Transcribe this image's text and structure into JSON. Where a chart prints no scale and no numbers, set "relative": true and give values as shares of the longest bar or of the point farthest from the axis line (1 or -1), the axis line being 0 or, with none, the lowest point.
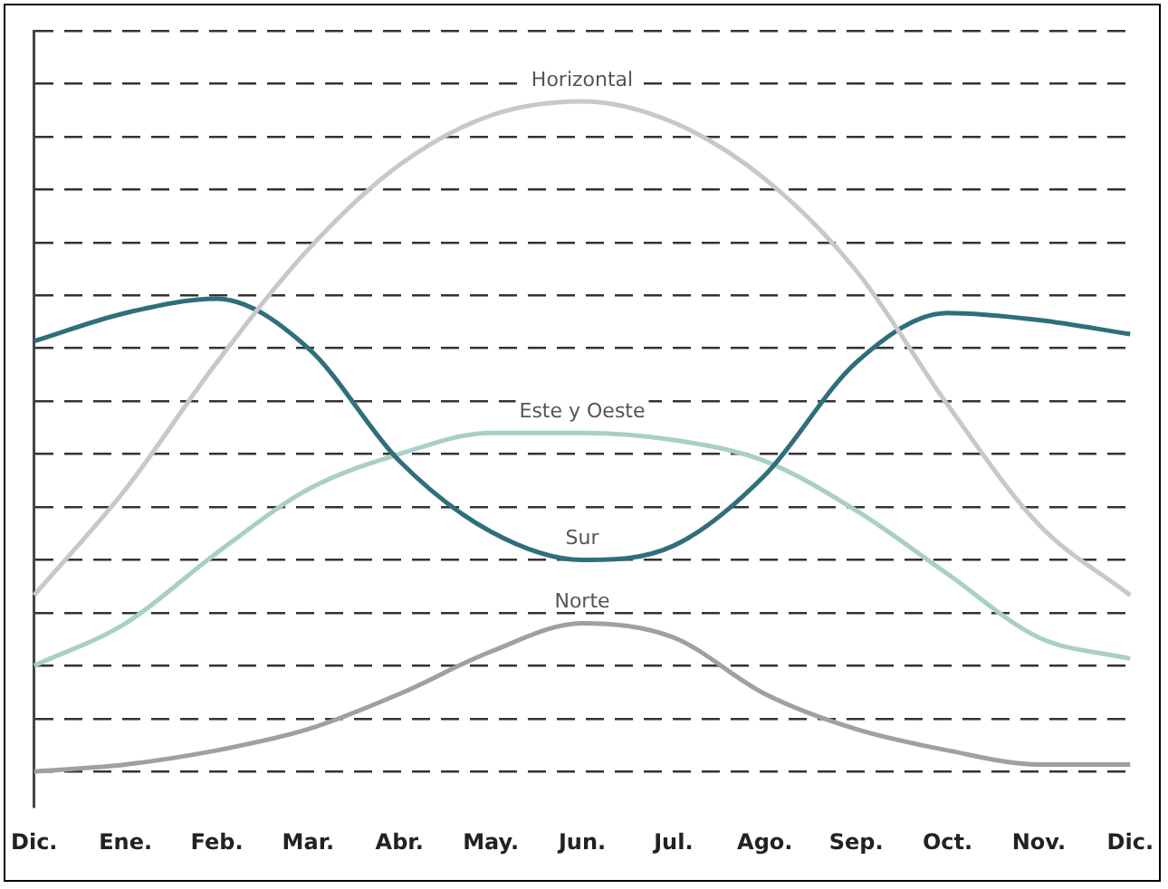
{
  "chart_data": {
    "type": "line",
    "relative": true,
    "grid": "y",
    "legend": false,
    "marker": "none",
    "line_style": "solid",
    "categories": [
      "Dic.",
      "Ene.",
      "Feb.",
      "Mar.",
      "Abr.",
      "May.",
      "Jun.",
      "Jul.",
      "Ago.",
      "Sep.",
      "Oct.",
      "Nov.",
      "Dic."
    ],
    "series": [
      {
        "name": "Horizontal",
        "color": "#c8c8c8",
        "values": [
          0.3,
          0.45,
          0.63,
          0.79,
          0.91,
          0.98,
          1,
          0.97,
          0.89,
          0.76,
          0.57,
          0.4,
          0.3
        ]
      },
      {
        "name": "Sur",
        "color": "#2f6f7a",
        "values": [
          0.66,
          0.7,
          0.72,
          0.65,
          0.49,
          0.39,
          0.35,
          0.37,
          0.47,
          0.63,
          0.7,
          0.69,
          0.67
        ]
      },
      {
        "name": "Este y Oeste",
        "color": "#a8d0c4",
        "values": [
          0.2,
          0.26,
          0.36,
          0.45,
          0.5,
          0.53,
          0.53,
          0.52,
          0.49,
          0.42,
          0.33,
          0.24,
          0.21
        ]
      },
      {
        "name": "Norte",
        "color": "#a0a0a0",
        "values": [
          0.05,
          0.06,
          0.08,
          0.11,
          0.16,
          0.22,
          0.26,
          0.24,
          0.16,
          0.11,
          0.08,
          0.06,
          0.06
        ]
      }
    ]
  }
}
